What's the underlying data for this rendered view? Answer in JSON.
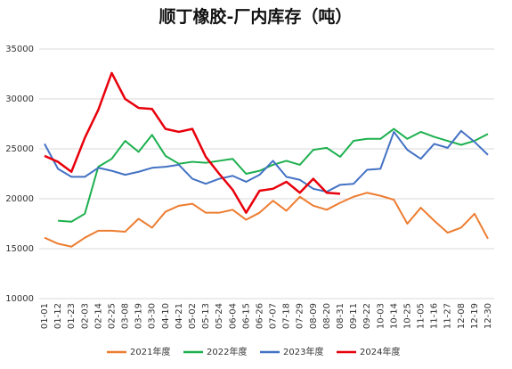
{
  "chart_data": {
    "type": "line",
    "title": "顺丁橡胶-厂内库存（吨）",
    "categories": [
      "01-01",
      "01-12",
      "01-23",
      "02-03",
      "02-14",
      "02-25",
      "03-08",
      "03-19",
      "03-30",
      "04-10",
      "04-21",
      "05-02",
      "05-13",
      "05-24",
      "06-04",
      "06-15",
      "06-26",
      "07-07",
      "07-18",
      "07-29",
      "08-09",
      "08-20",
      "08-31",
      "09-11",
      "09-22",
      "10-03",
      "10-14",
      "10-25",
      "11-05",
      "11-16",
      "11-27",
      "12-08",
      "12-19",
      "12-30"
    ],
    "series": [
      {
        "name": "2021年度",
        "color": "#ED7D31",
        "values": [
          16100,
          15500,
          15200,
          16100,
          16800,
          16800,
          16700,
          18000,
          17100,
          18700,
          19300,
          19500,
          18600,
          18600,
          18900,
          17900,
          18600,
          19800,
          18800,
          20200,
          19300,
          18900,
          19600,
          20200,
          20600,
          20300,
          19900,
          17500,
          19100,
          17800,
          16600,
          17100,
          18500,
          16000
        ]
      },
      {
        "name": "2022年度",
        "color": "#1DB04F",
        "values": [
          null,
          17800,
          17700,
          18500,
          23200,
          24000,
          25800,
          24700,
          26400,
          24300,
          23500,
          23700,
          23600,
          23800,
          24000,
          22500,
          22800,
          23400,
          23800,
          23400,
          24900,
          25100,
          24200,
          25800,
          26000,
          26000,
          27000,
          26000,
          26700,
          26200,
          25800,
          25400,
          25800,
          26500
        ]
      },
      {
        "name": "2023年度",
        "color": "#4472C4",
        "values": [
          25500,
          23000,
          22200,
          22200,
          23100,
          22800,
          22400,
          22700,
          23100,
          23200,
          23400,
          22000,
          21500,
          22000,
          22300,
          21700,
          22400,
          23800,
          22200,
          21900,
          21000,
          20700,
          21400,
          21500,
          22900,
          23000,
          26700,
          24900,
          24000,
          25500,
          25100,
          26800,
          25700,
          24400
        ]
      },
      {
        "name": "2024年度",
        "color": "#E8000B",
        "values": [
          24300,
          23700,
          22700,
          26100,
          28900,
          32600,
          30000,
          29100,
          29000,
          27000,
          26700,
          27000,
          24200,
          22500,
          20900,
          18600,
          20800,
          21000,
          21700,
          20600,
          22000,
          20600,
          20500,
          null,
          null,
          null,
          null,
          null,
          null,
          null,
          null,
          null,
          null,
          null
        ]
      }
    ],
    "ylim": [
      10000,
      35000
    ],
    "yticks": [
      10000,
      15000,
      20000,
      25000,
      30000,
      35000
    ],
    "grid": true,
    "legend": "bottom"
  }
}
